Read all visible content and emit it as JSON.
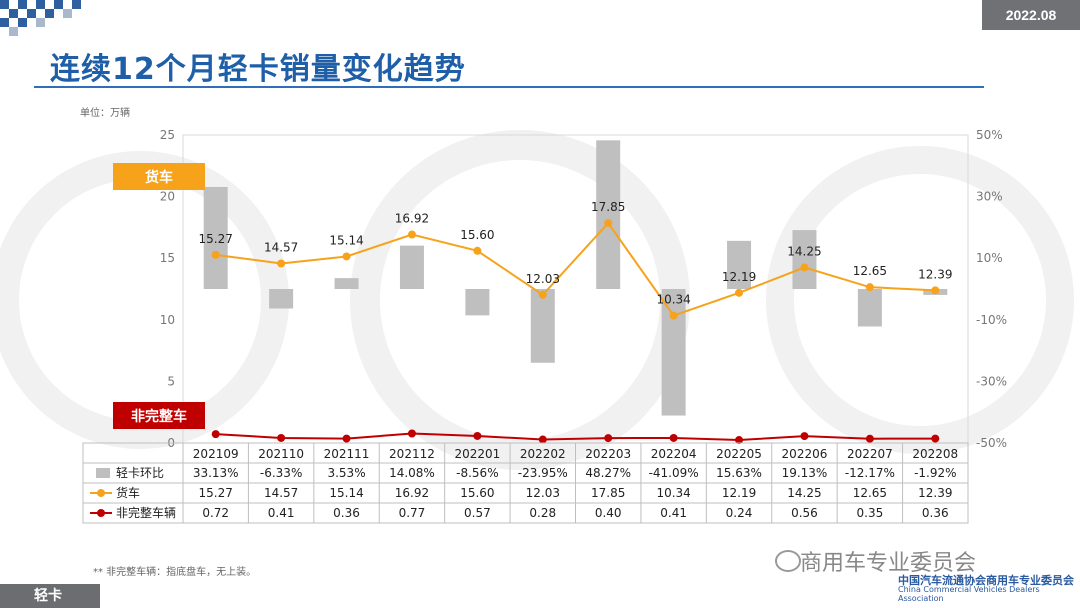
{
  "header": {
    "date": "2022.08",
    "title": "连续12个月轻卡销量变化趋势",
    "unit": "单位：万辆"
  },
  "footer": {
    "section_label": "轻卡",
    "note": "** 非完整车辆：指底盘车，无上装。",
    "watermark": "商用车专业委员会",
    "org_cn": "中国汽车流通协会商用车专业委员会",
    "org_en": "China Commercial Vehicles Dealers Association"
  },
  "chart_data": {
    "type": "bar+line",
    "categories": [
      "202109",
      "202110",
      "202111",
      "202112",
      "202201",
      "202202",
      "202203",
      "202204",
      "202205",
      "202206",
      "202207",
      "202208"
    ],
    "left_axis": {
      "range": [
        0,
        25
      ],
      "ticks": [
        "0",
        "5",
        "10",
        "15",
        "20",
        "25"
      ]
    },
    "right_axis": {
      "range": [
        -50,
        50
      ],
      "ticks": [
        "-50%",
        "-30%",
        "-10%",
        "10%",
        "30%",
        "50%"
      ]
    },
    "series": [
      {
        "name": "轻卡环比",
        "kind": "bar",
        "axis": "right",
        "color": "#bfbfbf",
        "values": [
          33.13,
          -6.33,
          3.53,
          14.08,
          -8.56,
          -23.95,
          48.27,
          -41.09,
          15.63,
          19.13,
          -12.17,
          -1.92
        ],
        "labels": [
          "33.13%",
          "-6.33%",
          "3.53%",
          "14.08%",
          "-8.56%",
          "-23.95%",
          "48.27%",
          "-41.09%",
          "15.63%",
          "19.13%",
          "-12.17%",
          "-1.92%"
        ]
      },
      {
        "name": "货车",
        "kind": "line",
        "axis": "left",
        "color": "#f7a21b",
        "values": [
          15.27,
          14.57,
          15.14,
          16.92,
          15.6,
          12.03,
          17.85,
          10.34,
          12.19,
          14.25,
          12.65,
          12.39
        ],
        "labels": [
          "15.27",
          "14.57",
          "15.14",
          "16.92",
          "15.60",
          "12.03",
          "17.85",
          "10.34",
          "12.19",
          "14.25",
          "12.65",
          "12.39"
        ]
      },
      {
        "name": "非完整车辆",
        "kind": "line",
        "axis": "left",
        "color": "#c00000",
        "values": [
          0.72,
          0.41,
          0.36,
          0.77,
          0.57,
          0.28,
          0.4,
          0.41,
          0.24,
          0.56,
          0.35,
          0.36
        ],
        "labels": [
          "0.72",
          "0.41",
          "0.36",
          "0.77",
          "0.57",
          "0.28",
          "0.40",
          "0.41",
          "0.24",
          "0.56",
          "0.35",
          "0.36"
        ]
      }
    ],
    "callouts": {
      "truck": "货车",
      "incomplete": "非完整车"
    }
  },
  "colors": {
    "title": "#1f5fa8",
    "orange": "#f7a21b",
    "red": "#c00000",
    "bar": "#bfbfbf"
  }
}
